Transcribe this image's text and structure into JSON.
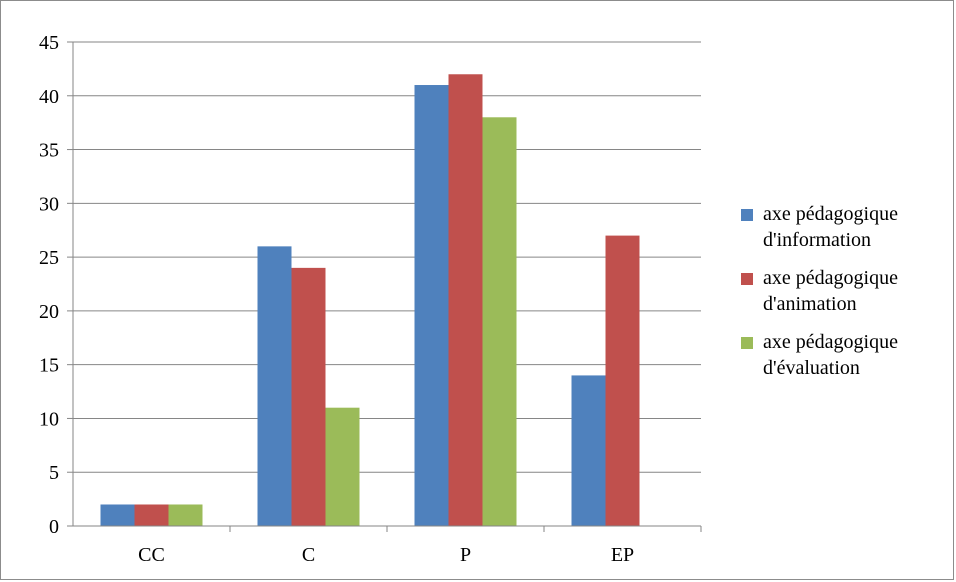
{
  "chart_data": {
    "type": "bar",
    "categories": [
      "CC",
      "C",
      "P",
      "EP"
    ],
    "series": [
      {
        "name": "axe pédagogique d'information",
        "values": [
          2,
          26,
          41,
          14
        ],
        "color": "#4f81bd"
      },
      {
        "name": "axe pédagogique d'animation",
        "values": [
          2,
          24,
          42,
          27
        ],
        "color": "#c0504d"
      },
      {
        "name": "axe pédagogique d'évaluation",
        "values": [
          2,
          11,
          38,
          0
        ],
        "color": "#9bbb59"
      }
    ],
    "ylim": [
      0,
      45
    ],
    "yticks": [
      0,
      5,
      10,
      15,
      20,
      25,
      30,
      35,
      40,
      45
    ],
    "grid": true,
    "legend_position": "right"
  }
}
